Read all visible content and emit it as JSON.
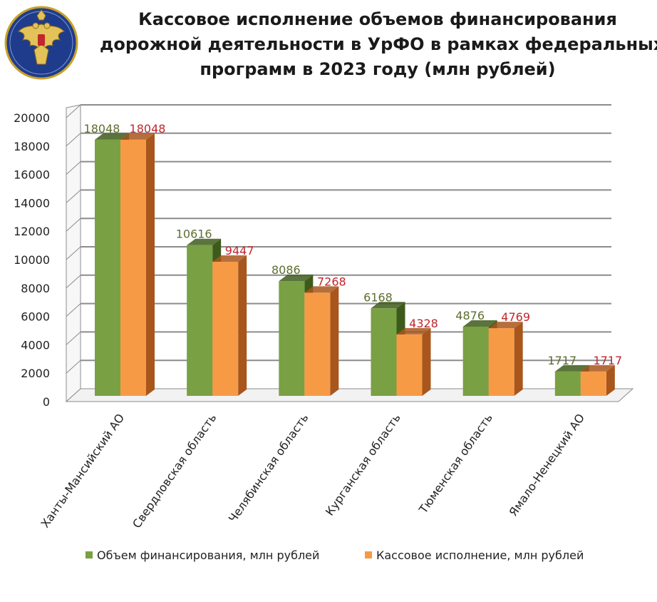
{
  "title": {
    "lines": [
      "Кассовое исполнение объемов финансирования",
      "дорожной деятельности в  УрФО в рамках федеральных",
      "программ в 2023 году (млн рублей)"
    ]
  },
  "logo": {
    "icon": "double-headed-eagle-emblem"
  },
  "colors": {
    "series1": "#79A043",
    "series1_dark": "#3E5A1B",
    "series2": "#F79A46",
    "series2_dark": "#A8561C",
    "label1": "#5E6E2E",
    "label2": "#C0262C",
    "grid": "#8C8C8C"
  },
  "chart_data": {
    "type": "bar",
    "categories": [
      "Ханты-Мансийский АО",
      "Свердловская область",
      "Челябинская область",
      "Курганская область",
      "Тюменская область",
      "Ямало-Ненецкий АО"
    ],
    "series": [
      {
        "name": "Объем финансирования, млн рублей",
        "values": [
          18048,
          10616,
          8086,
          6168,
          4876,
          1717
        ]
      },
      {
        "name": "Кассовое исполнение, млн рублей",
        "values": [
          18048,
          9447,
          7268,
          4328,
          4769,
          1717
        ]
      }
    ],
    "ylim": [
      0,
      20000
    ],
    "yticks": [
      0,
      2000,
      4000,
      6000,
      8000,
      10000,
      12000,
      14000,
      16000,
      18000,
      20000
    ],
    "grid": true,
    "legend_position": "bottom",
    "style": "3d-clustered-column"
  }
}
